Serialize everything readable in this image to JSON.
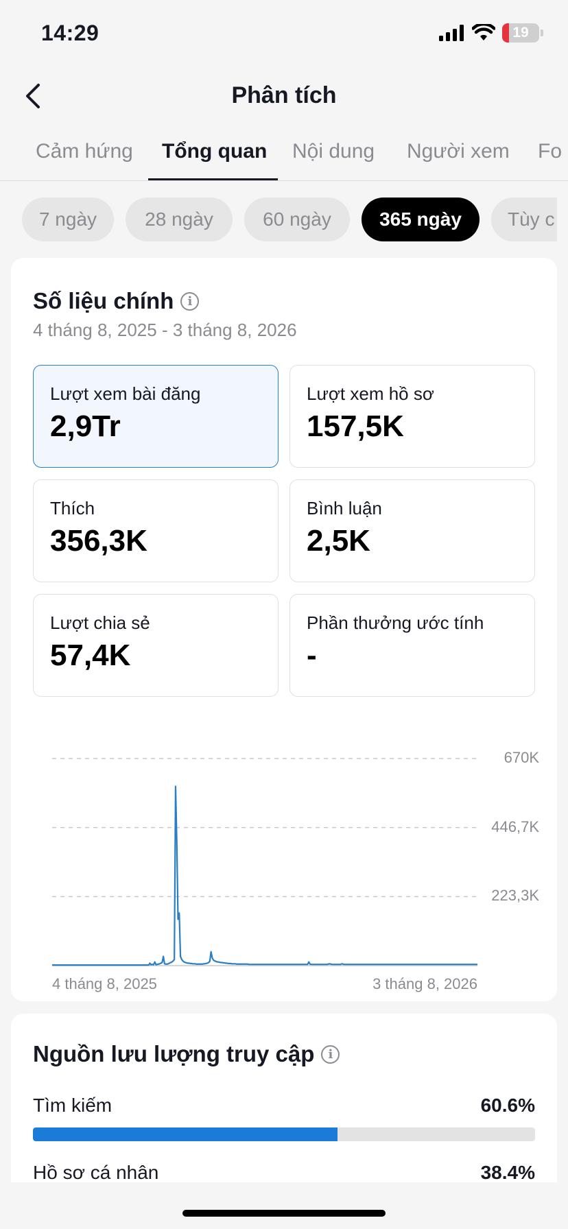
{
  "status": {
    "time": "14:29",
    "battery": "19",
    "battery_level": 0.19
  },
  "nav": {
    "title": "Phân tích",
    "back_icon": "chevron-left-icon"
  },
  "tabs": [
    {
      "label": "Cảm hứng",
      "active": false
    },
    {
      "label": "Tổng quan",
      "active": true
    },
    {
      "label": "Nội dung",
      "active": false
    },
    {
      "label": "Người xem",
      "active": false
    },
    {
      "label": "Fo",
      "active": false
    }
  ],
  "ranges": [
    {
      "label": "7 ngày",
      "active": false
    },
    {
      "label": "28 ngày",
      "active": false
    },
    {
      "label": "60 ngày",
      "active": false
    },
    {
      "label": "365 ngày",
      "active": true
    },
    {
      "label": "Tùy c",
      "active": false
    }
  ],
  "key_metrics": {
    "title": "Số liệu chính",
    "date_range": "4 tháng 8, 2025 - 3 tháng 8, 2026",
    "items": [
      {
        "label": "Lượt xem bài đăng",
        "value": "2,9Tr",
        "selected": true
      },
      {
        "label": "Lượt xem hồ sơ",
        "value": "157,5K",
        "selected": false
      },
      {
        "label": "Thích",
        "value": "356,3K",
        "selected": false
      },
      {
        "label": "Bình luận",
        "value": "2,5K",
        "selected": false
      },
      {
        "label": "Lượt chia sẻ",
        "value": "57,4K",
        "selected": false
      },
      {
        "label": "Phần thưởng ước tính",
        "value": "-",
        "selected": false
      }
    ]
  },
  "chart_data": {
    "type": "line",
    "x_start": "4 tháng 8, 2025",
    "x_end": "3 tháng 8, 2026",
    "y_ticks": [
      {
        "value": 670000,
        "label": "670K"
      },
      {
        "value": 446700,
        "label": "446,7K"
      },
      {
        "value": 223300,
        "label": "223,3K"
      }
    ],
    "ylim": [
      0,
      670000
    ],
    "grid": true,
    "color": "#2a7ec4",
    "series": [
      {
        "values": [
          2000,
          2000,
          2000,
          2000,
          2000,
          2000,
          2000,
          2000,
          2000,
          2000,
          2000,
          2000,
          2000,
          2000,
          2000,
          2000,
          2000,
          2000,
          2000,
          2000,
          2000,
          2000,
          2000,
          2000,
          2000,
          2000,
          2000,
          2000,
          2000,
          2000,
          2000,
          2000,
          2000,
          2000,
          2000,
          2000,
          2000,
          2000,
          2000,
          2000,
          2000,
          2000,
          2000,
          2000,
          2000,
          2000,
          2000,
          2000,
          2000,
          2000,
          2000,
          2000,
          2000,
          2000,
          2000,
          2000,
          2000,
          2000,
          2000,
          2000,
          2000,
          2000,
          2000,
          2000,
          2000,
          2000,
          2000,
          2000,
          2000,
          2000,
          2000,
          2000,
          2000,
          2000,
          2000,
          2000,
          2000,
          2000,
          2000,
          2000,
          8000,
          3000,
          4000,
          3000,
          12000,
          3000,
          4000,
          5000,
          6000,
          8000,
          10000,
          30000,
          6000,
          5000,
          5000,
          6000,
          8000,
          10000,
          12000,
          15000,
          20000,
          580000,
          400000,
          150000,
          170000,
          30000,
          20000,
          15000,
          12000,
          10000,
          9000,
          8000,
          8000,
          7000,
          7000,
          6000,
          6000,
          6000,
          5000,
          5000,
          5000,
          5000,
          5000,
          5000,
          6000,
          6000,
          7000,
          8000,
          10000,
          14000,
          45000,
          25000,
          18000,
          15000,
          14000,
          12000,
          12000,
          11000,
          10000,
          10000,
          9000,
          9000,
          8000,
          8000,
          7000,
          7000,
          7000,
          6000,
          6000,
          6000,
          6000,
          5000,
          5000,
          5000,
          5000,
          5000,
          5000,
          5000,
          5000,
          5000,
          5000,
          4000,
          4000,
          4000,
          4000,
          4000,
          4000,
          4000,
          4000,
          4000,
          4000,
          4000,
          4000,
          4000,
          4000,
          4000,
          4000,
          4000,
          4000,
          4000,
          4000,
          4000,
          4000,
          4000,
          4000,
          4000,
          4000,
          4000,
          4000,
          4000,
          4000,
          4000,
          4000,
          4000,
          4000,
          4000,
          4000,
          4000,
          4000,
          4000,
          4000,
          4000,
          4000,
          4000,
          4000,
          4000,
          4000,
          4000,
          4000,
          4000,
          12000,
          5000,
          4000,
          4000,
          4000,
          4000,
          4000,
          4000,
          4000,
          4000,
          4000,
          4000,
          4000,
          4000,
          4000,
          4000,
          5000,
          6000,
          5000,
          4000,
          4000,
          4000,
          4000,
          4000,
          4000,
          4000,
          4000,
          6000,
          5000,
          4000,
          4000,
          4000,
          4000,
          4000,
          4000,
          4000,
          4000,
          4000,
          4000,
          4000,
          4000,
          4000,
          4000,
          4000,
          4000,
          4000,
          4000,
          4000,
          4000,
          4000,
          4000,
          4000,
          4000,
          4000,
          4000,
          4000,
          4000,
          4000,
          4000,
          4000,
          4000,
          4000,
          4000,
          4000,
          4000,
          4000,
          4000,
          4000,
          4000,
          4000,
          4000,
          4000,
          4000,
          4000,
          4000,
          4000,
          4000,
          4000,
          4000,
          4000,
          4000,
          4000,
          4000,
          4000,
          4000,
          4000,
          4000,
          4000,
          4000,
          4000,
          4000,
          4000,
          4000,
          4000,
          4000,
          4000,
          4000,
          4000,
          4000,
          4000,
          4000,
          4000,
          4000,
          4000,
          4000,
          4000,
          4000,
          4000,
          4000,
          4000,
          4000,
          4000,
          4000,
          4000,
          4000,
          4000,
          4000,
          4000,
          4000,
          4000,
          4000,
          4000,
          4000,
          4000,
          4000,
          4000,
          4000,
          4000,
          4000,
          4000,
          4000,
          4000,
          4000,
          4000,
          4000,
          4000,
          4000,
          4000,
          4000
        ]
      }
    ]
  },
  "traffic": {
    "title": "Nguồn lưu lượng truy cập",
    "items": [
      {
        "label": "Tìm kiếm",
        "percent": "60.6%",
        "fraction": 0.606
      },
      {
        "label": "Hồ sơ cá nhân",
        "percent": "38.4%",
        "fraction": 0.384
      }
    ]
  }
}
